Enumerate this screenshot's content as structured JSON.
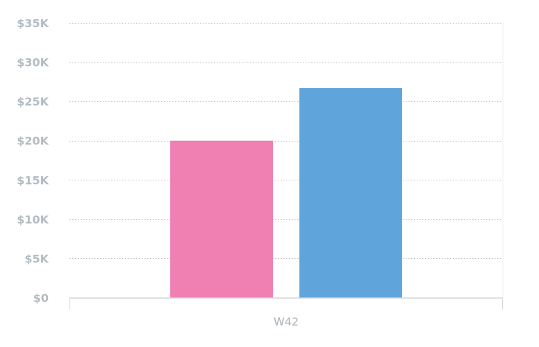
{
  "chart_data": {
    "type": "bar",
    "categories": [
      "W42"
    ],
    "series": [
      {
        "values": [
          20000
        ],
        "color": "#f07fb2"
      },
      {
        "values": [
          26700
        ],
        "color": "#5fa5db"
      }
    ],
    "title": "",
    "xlabel": "",
    "ylabel": "",
    "ylim": [
      0,
      35000
    ],
    "yticks": [
      0,
      5000,
      10000,
      15000,
      20000,
      25000,
      30000,
      35000
    ],
    "ytick_labels": [
      "$0",
      "$5K",
      "$10K",
      "$15K",
      "$20K",
      "$25K",
      "$30K",
      "$35K"
    ],
    "grid": true,
    "gridline_style": "dotted",
    "colors": {
      "grid": "#b5bcc2",
      "axis": "#d5dadd",
      "tick_text": "#b3bcc3",
      "category_text": "#a9b2b9"
    }
  }
}
